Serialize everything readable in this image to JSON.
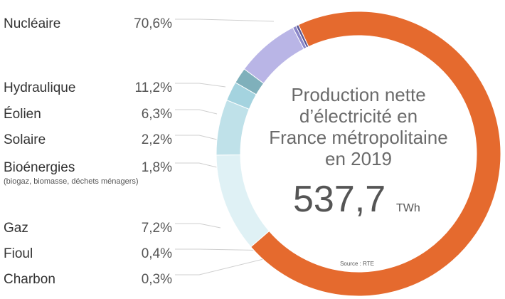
{
  "chart_data": {
    "type": "pie",
    "title_lines": [
      "Production nette",
      "d’électricité en",
      "France métropolitaine",
      "en 2019"
    ],
    "total": {
      "value": "537,7",
      "unit": "TWh"
    },
    "source": "Source : RTE",
    "slices": [
      {
        "name": "Nucléaire",
        "label": "70,6%",
        "value": 70.6,
        "color": "#e56a2e"
      },
      {
        "name": "Hydraulique",
        "label": "11,2%",
        "value": 11.2,
        "color": "#dff1f5"
      },
      {
        "name": "Éolien",
        "label": "6,3%",
        "value": 6.3,
        "color": "#bfe1e9"
      },
      {
        "name": "Solaire",
        "label": "2,2%",
        "value": 2.2,
        "color": "#a4d3df"
      },
      {
        "name": "Bioénergies",
        "sublabel": "(biogaz, biomasse, déchets ménagers)",
        "label": "1,8%",
        "value": 1.8,
        "color": "#7fb0bb"
      },
      {
        "name": "Gaz",
        "label": "7,2%",
        "value": 7.2,
        "color": "#b9b5e6"
      },
      {
        "name": "Fioul",
        "label": "0,4%",
        "value": 0.4,
        "color": "#8a86c9"
      },
      {
        "name": "Charbon",
        "label": "0,3%",
        "value": 0.3,
        "color": "#5b5794"
      }
    ]
  }
}
